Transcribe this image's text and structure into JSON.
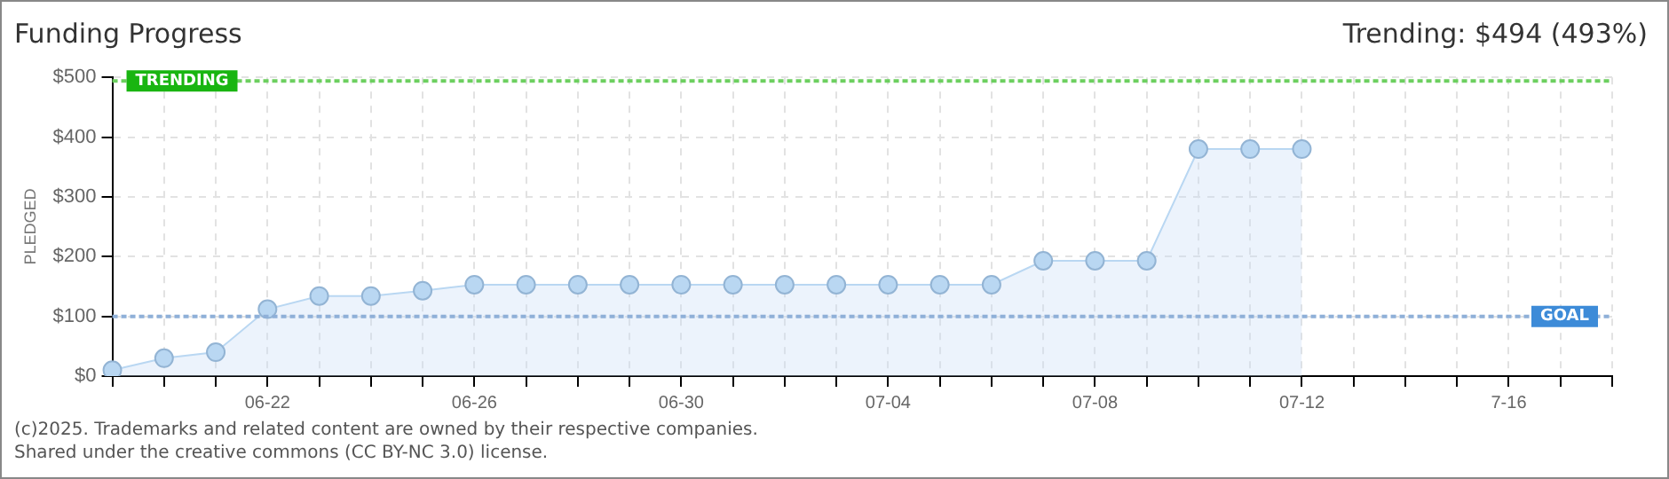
{
  "chart_data": {
    "type": "area",
    "title": "Funding Progress",
    "ylabel": "PLEDGED",
    "categories": [
      null,
      null,
      null,
      "06-22",
      null,
      null,
      null,
      "06-26",
      null,
      null,
      null,
      "06-30",
      null,
      null,
      null,
      "07-04",
      null,
      null,
      null,
      "07-08",
      null,
      null,
      null,
      "07-12",
      null,
      null,
      null,
      "7-16",
      null,
      null
    ],
    "series": [
      {
        "color": "#b9d7f2",
        "values": [
          10,
          30,
          40,
          112,
          134,
          134,
          143,
          153,
          153,
          153,
          153,
          153,
          153,
          153,
          153,
          153,
          153,
          153,
          193,
          193,
          193,
          380,
          380,
          380,
          null,
          null,
          null,
          null,
          null,
          null
        ]
      }
    ],
    "ylim": [
      0,
      500
    ],
    "yticks": [
      {
        "value": 0,
        "label": "$0"
      },
      {
        "value": 100,
        "label": "$100"
      },
      {
        "value": 200,
        "label": "$200"
      },
      {
        "value": 300,
        "label": "$300"
      },
      {
        "value": 400,
        "label": "$400"
      },
      {
        "value": 500,
        "label": "$500"
      }
    ],
    "ref_lines": [
      {
        "axis": "y",
        "value": 494,
        "label": "TRENDING",
        "color": "#6ccf5f"
      },
      {
        "axis": "y",
        "value": 100,
        "label": "GOAL",
        "color": "#8fb0d8"
      }
    ],
    "annotations": [
      "Trending:  $494 (493%)",
      "(c)2025. Trademarks and related content are owned by their respective companies.",
      "Shared under the creative commons (CC BY-NC 3.0) license."
    ],
    "grid": true,
    "legend": false,
    "marker": "circle"
  }
}
